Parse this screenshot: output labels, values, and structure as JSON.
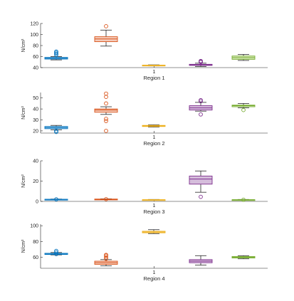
{
  "chart_data": [
    {
      "type": "box",
      "xlabel": "Region 1",
      "x_tick_labels": [
        "1"
      ],
      "ylabel": "N/cm²",
      "ylim": [
        40,
        120
      ],
      "yticks": [
        40,
        60,
        80,
        100,
        120
      ],
      "series": [
        {
          "color": "#0072BD",
          "fill": "#B3D4EC",
          "min": 54,
          "q1": 55.5,
          "median": 57,
          "q3": 58.5,
          "max": 60,
          "outliers": [
            63,
            65,
            67,
            69
          ]
        },
        {
          "color": "#D95319",
          "fill": "#F4CBBA",
          "min": 79,
          "q1": 87,
          "median": 92,
          "q3": 96,
          "max": 108,
          "outliers": [
            115
          ]
        },
        {
          "color": "#EDB120",
          "fill": "#F9E7BC",
          "min": 43,
          "q1": 43.5,
          "median": 44,
          "q3": 44.5,
          "max": 45,
          "outliers": []
        },
        {
          "color": "#7E2F8E",
          "fill": "#D5BDDB",
          "min": 42,
          "q1": 44,
          "median": 45,
          "q3": 46,
          "max": 48,
          "outliers": [
            50,
            51,
            52
          ]
        },
        {
          "color": "#77AC30",
          "fill": "#D4E8B9",
          "min": 53,
          "q1": 55,
          "median": 58,
          "q3": 61,
          "max": 64,
          "outliers": []
        }
      ]
    },
    {
      "type": "box",
      "xlabel": "Region 2",
      "x_tick_labels": [
        "1"
      ],
      "ylabel": "N/cm²",
      "ylim": [
        18,
        55
      ],
      "yticks": [
        20,
        30,
        40,
        50
      ],
      "series": [
        {
          "color": "#0072BD",
          "fill": "#B3D4EC",
          "min": 21,
          "q1": 22,
          "median": 23,
          "q3": 24,
          "max": 25,
          "outliers": [
            19,
            20
          ]
        },
        {
          "color": "#D95319",
          "fill": "#F4CBBA",
          "min": 35,
          "q1": 37,
          "median": 39,
          "q3": 40,
          "max": 42,
          "outliers": [
            20,
            29,
            31,
            45,
            51,
            54
          ]
        },
        {
          "color": "#EDB120",
          "fill": "#F9E7BC",
          "min": 23.5,
          "q1": 24,
          "median": 24.5,
          "q3": 25,
          "max": 25.5,
          "outliers": []
        },
        {
          "color": "#7E2F8E",
          "fill": "#D5BDDB",
          "min": 38,
          "q1": 39,
          "median": 41,
          "q3": 43,
          "max": 46,
          "outliers": [
            35,
            47,
            48
          ]
        },
        {
          "color": "#77AC30",
          "fill": "#D4E8B9",
          "min": 41,
          "q1": 42,
          "median": 43,
          "q3": 43.5,
          "max": 45,
          "outliers": [
            39
          ]
        }
      ]
    },
    {
      "type": "box",
      "xlabel": "Region 3",
      "x_tick_labels": [
        "1"
      ],
      "ylabel": "N/cm²",
      "ylim": [
        0,
        40
      ],
      "yticks": [
        0,
        20,
        40
      ],
      "series": [
        {
          "color": "#0072BD",
          "fill": "#B3D4EC",
          "min": 1.5,
          "q1": 1.7,
          "median": 1.9,
          "q3": 2.1,
          "max": 2.3,
          "outliers": [
            2
          ]
        },
        {
          "color": "#D95319",
          "fill": "#F4CBBA",
          "min": 1.7,
          "q1": 1.9,
          "median": 2.1,
          "q3": 2.3,
          "max": 2.5,
          "outliers": [
            2.2
          ]
        },
        {
          "color": "#EDB120",
          "fill": "#F9E7BC",
          "min": 1.3,
          "q1": 1.5,
          "median": 1.6,
          "q3": 1.7,
          "max": 1.9,
          "outliers": []
        },
        {
          "color": "#7E2F8E",
          "fill": "#D5BDDB",
          "min": 9,
          "q1": 17,
          "median": 22,
          "q3": 25,
          "max": 30,
          "outliers": [
            4.5
          ]
        },
        {
          "color": "#77AC30",
          "fill": "#D4E8B9",
          "min": 1.3,
          "q1": 1.5,
          "median": 1.6,
          "q3": 1.7,
          "max": 1.9,
          "outliers": [
            1.6
          ]
        }
      ]
    },
    {
      "type": "box",
      "xlabel": "Region 4",
      "x_tick_labels": [
        "1"
      ],
      "ylabel": "N/cm²",
      "ylim": [
        46,
        102
      ],
      "yticks": [
        60,
        80,
        100
      ],
      "series": [
        {
          "color": "#0072BD",
          "fill": "#B3D4EC",
          "min": 63,
          "q1": 63.5,
          "median": 64,
          "q3": 65,
          "max": 66,
          "outliers": [
            64,
            66,
            68
          ]
        },
        {
          "color": "#D95319",
          "fill": "#F4CBBA",
          "min": 49,
          "q1": 51,
          "median": 53,
          "q3": 55,
          "max": 57,
          "outliers": [
            58,
            60,
            62,
            63
          ]
        },
        {
          "color": "#EDB120",
          "fill": "#F9E7BC",
          "min": 90,
          "q1": 91,
          "median": 92,
          "q3": 93,
          "max": 95,
          "outliers": []
        },
        {
          "color": "#7E2F8E",
          "fill": "#D5BDDB",
          "min": 50,
          "q1": 53,
          "median": 55,
          "q3": 57,
          "max": 62,
          "outliers": []
        },
        {
          "color": "#77AC30",
          "fill": "#D4E8B9",
          "min": 58,
          "q1": 59,
          "median": 60,
          "q3": 61,
          "max": 62,
          "outliers": []
        }
      ]
    }
  ]
}
